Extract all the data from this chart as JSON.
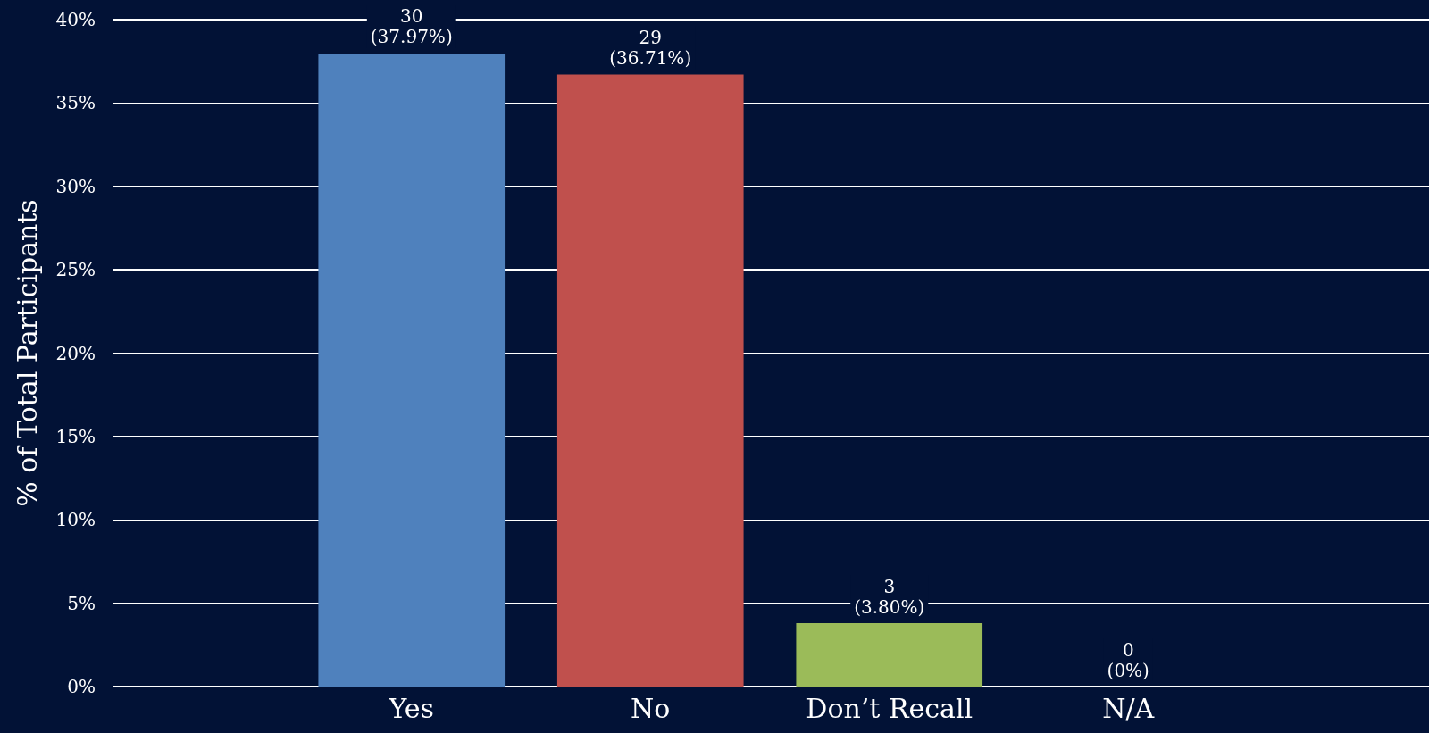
{
  "chart_data": {
    "type": "bar",
    "categories": [
      "Yes",
      "No",
      "Don’t Recall",
      "N/A"
    ],
    "values": [
      37.97,
      36.71,
      3.8,
      0
    ],
    "colors": [
      "#4f81bd",
      "#c0504d",
      "#9bbb59",
      "#8064a2"
    ],
    "value_labels": [
      "30\n(37.97%)",
      "29\n(36.71%)",
      "3\n(3.80%)",
      "0\n(0%)"
    ],
    "ylabel": "% of Total Participants",
    "ylim": [
      0,
      40
    ],
    "yticks": [
      {
        "value": 0,
        "label": "0%"
      },
      {
        "value": 5,
        "label": "5%"
      },
      {
        "value": 10,
        "label": "10%"
      },
      {
        "value": 15,
        "label": "15%"
      },
      {
        "value": 20,
        "label": "20%"
      },
      {
        "value": 25,
        "label": "25%"
      },
      {
        "value": 30,
        "label": "30%"
      },
      {
        "value": 35,
        "label": "35%"
      },
      {
        "value": 40,
        "label": "40%"
      }
    ],
    "grid": "y"
  }
}
